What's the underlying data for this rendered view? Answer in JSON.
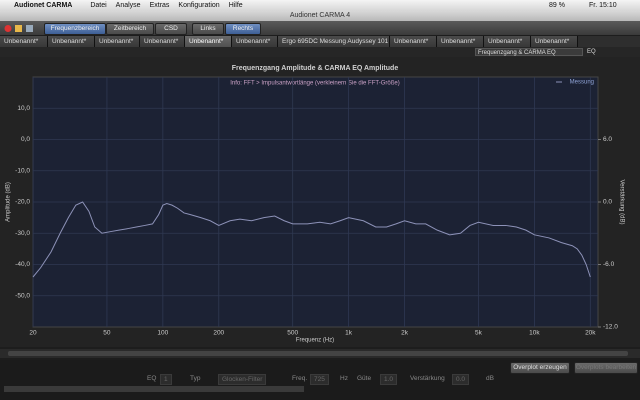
{
  "menubar": {
    "app": "Audionet CARMA",
    "items": [
      "Datei",
      "Analyse",
      "Extras",
      "Konfiguration",
      "Hilfe"
    ],
    "battery": "89 %",
    "clock": "Fr. 15:10"
  },
  "window": {
    "title": "Audionet CARMA 4"
  },
  "toolbar": {
    "buttons": [
      "Frequenzbereich",
      "Zeitbereich",
      "CSD"
    ],
    "channels": [
      "Links",
      "Rechts"
    ]
  },
  "tabs": [
    "Unbenannt*",
    "Unbenannt*",
    "Unbenannt*",
    "Unbenannt*",
    "Unbenannt*",
    "Unbenannt*",
    "Ergo 695DC Messung Audyssey 101",
    "Unbenannt*",
    "Unbenannt*",
    "Unbenannt*",
    "Unbenannt*"
  ],
  "view_select": {
    "selected": "Frequenzgang & CARMA EQ",
    "eq": "EQ"
  },
  "chart_data": {
    "type": "line",
    "title": "Frequenzgang Amplitude & CARMA EQ Amplitude",
    "annotation": "Info: FFT > Impulsantwortlänge (verkleinern Sie die FFT-Größe)",
    "xlabel": "Frequenz (Hz)",
    "ylabel": "Amplitude (dB)",
    "y2label": "Verstärkung (dB)",
    "xscale": "log",
    "grid": true,
    "legend": "upper right",
    "xlim": [
      20,
      22000
    ],
    "ylim": [
      -60,
      20
    ],
    "y2lim": [
      -12,
      12
    ],
    "xticks": [
      20,
      50,
      100,
      200,
      500,
      {
        "value": 1000,
        "label": "1k"
      },
      {
        "value": 2000,
        "label": "2k"
      },
      {
        "value": 5000,
        "label": "5k"
      },
      {
        "value": 10000,
        "label": "10k"
      },
      {
        "value": 20000,
        "label": "20k"
      }
    ],
    "yticks": [
      {
        "value": -50,
        "label": "-50,0"
      },
      {
        "value": -40,
        "label": "-40,0"
      },
      {
        "value": -30,
        "label": "-30,0"
      },
      {
        "value": -20,
        "label": "-20,0"
      },
      {
        "value": -10,
        "label": "-10,0"
      },
      {
        "value": 0,
        "label": "0,0"
      },
      {
        "value": 10,
        "label": "10,0"
      }
    ],
    "y2ticks": [
      {
        "value": -12,
        "label": "-12.0"
      },
      {
        "value": -6,
        "label": "-6.0"
      },
      {
        "value": 0,
        "label": "0.0"
      },
      {
        "value": 6,
        "label": "6.0"
      }
    ],
    "x": [
      20,
      22,
      25,
      28,
      31,
      34,
      37,
      40,
      43,
      47,
      52,
      58,
      65,
      72,
      80,
      88,
      95,
      100,
      105,
      112,
      120,
      130,
      140,
      160,
      180,
      200,
      230,
      260,
      300,
      350,
      400,
      450,
      500,
      600,
      700,
      800,
      900,
      1000,
      1200,
      1400,
      1600,
      1800,
      2000,
      2300,
      2600,
      3000,
      3500,
      4000,
      4500,
      5000,
      6000,
      7000,
      8000,
      9000,
      10000,
      12000,
      14000,
      16000,
      17000,
      18000,
      19000,
      20000
    ],
    "series": [
      {
        "name": "Messung",
        "color": "#8d92b8",
        "values": [
          -44,
          -41,
          -36,
          -30,
          -25,
          -21,
          -20,
          -23,
          -28,
          -30,
          -29.5,
          -29,
          -28.5,
          -28,
          -27.5,
          -27,
          -24,
          -21,
          -20.5,
          -21,
          -22,
          -23.5,
          -24,
          -25,
          -26,
          -27.5,
          -26,
          -25.5,
          -26,
          -25,
          -24.5,
          -26,
          -27,
          -27,
          -26.5,
          -27,
          -26,
          -25,
          -26,
          -28,
          -28,
          -27,
          -26,
          -27,
          -27,
          -29,
          -30.5,
          -30,
          -27.5,
          -26.5,
          -27.5,
          -27.5,
          -28,
          -29,
          -30.5,
          -31.5,
          -33,
          -34,
          -35,
          -37,
          -40,
          -44
        ]
      }
    ]
  },
  "footer": {
    "overplot_buttons": [
      "Overplot erzeugen",
      "Overplots bearbeiten"
    ],
    "eq_row": {
      "eq": "EQ",
      "eq_value": "1",
      "type_label": "Typ",
      "type_value": "Glocken-Filter",
      "freq_label": "Freq.",
      "freq_value": "725",
      "freq_unit": "Hz",
      "q_label": "Güte",
      "q_value": "1.0",
      "gain_label": "Verstärkung",
      "gain_value": "0.0",
      "gain_unit": "dB"
    }
  }
}
